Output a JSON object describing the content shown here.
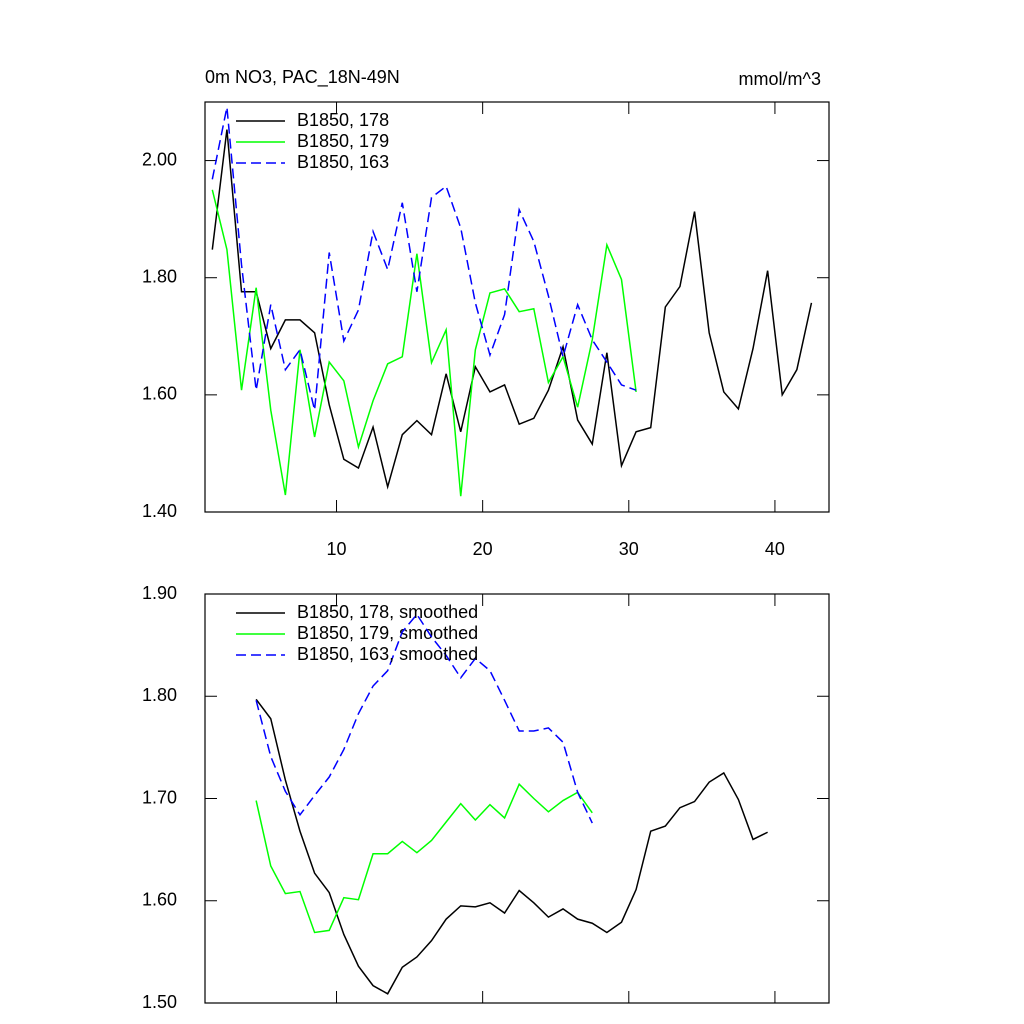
{
  "chart_data": [
    {
      "type": "line",
      "title": "0m NO3, PAC_18N-49N",
      "units": "mmol/m^3",
      "x": [
        1.5,
        2.5,
        3.5,
        4.5,
        5.5,
        6.5,
        7.5,
        8.5,
        9.5,
        10.5,
        11.5,
        12.5,
        13.5,
        14.5,
        15.5,
        16.5,
        17.5,
        18.5,
        19.5,
        20.5,
        21.5,
        22.5,
        23.5,
        24.5,
        25.5,
        26.5,
        27.5,
        28.5,
        29.5,
        30.5,
        31.5,
        32.5,
        33.5,
        34.5,
        35.5,
        36.5,
        37.5,
        38.5,
        39.5,
        40.5,
        41.5,
        42.5
      ],
      "series": [
        {
          "name": "B1850, 178",
          "color": "#000000",
          "dashed": false,
          "values": [
            1.848,
            2.053,
            1.776,
            1.776,
            1.679,
            1.728,
            1.728,
            1.706,
            1.583,
            1.49,
            1.475,
            1.545,
            1.443,
            1.532,
            1.556,
            1.532,
            1.636,
            1.537,
            1.648,
            1.605,
            1.617,
            1.55,
            1.56,
            1.608,
            1.682,
            1.557,
            1.516,
            1.672,
            1.479,
            1.537,
            1.544,
            1.75,
            1.785,
            1.913,
            1.706,
            1.605,
            1.576,
            1.679,
            1.812,
            1.6,
            1.643,
            1.757
          ]
        },
        {
          "name": "B1850, 179",
          "color": "#00ff00",
          "dashed": false,
          "values": [
            1.95,
            1.848,
            1.608,
            1.783,
            1.574,
            1.429,
            1.677,
            1.528,
            1.656,
            1.624,
            1.511,
            1.59,
            1.653,
            1.665,
            1.841,
            1.655,
            1.711,
            1.427,
            1.677,
            1.774,
            1.781,
            1.742,
            1.747,
            1.621,
            1.665,
            1.579,
            1.694,
            1.856,
            1.797,
            1.605,
            null,
            null,
            null,
            null,
            null,
            null,
            null,
            null,
            null,
            null,
            null,
            null
          ]
        },
        {
          "name": "B1850, 163",
          "color": "#0000ff",
          "dashed": true,
          "values": [
            1.968,
            2.091,
            1.822,
            1.608,
            1.754,
            1.643,
            1.677,
            1.574,
            1.843,
            1.692,
            1.745,
            1.879,
            1.814,
            1.928,
            1.776,
            1.937,
            1.956,
            1.885,
            1.757,
            1.668,
            1.737,
            1.916,
            1.862,
            1.769,
            1.665,
            1.754,
            1.694,
            1.656,
            1.617,
            1.608,
            null,
            null,
            null,
            null,
            null,
            null,
            null,
            null,
            null,
            null,
            null,
            null
          ]
        }
      ],
      "xlim": [
        1,
        43.7
      ],
      "xticks": [
        10,
        20,
        30,
        40
      ],
      "ylim": [
        1.4,
        2.1
      ],
      "yticks": [
        {
          "value": 1.4,
          "label": "1.40"
        },
        {
          "value": 1.6,
          "label": "1.60"
        },
        {
          "value": 1.8,
          "label": "1.80"
        },
        {
          "value": 2.0,
          "label": "2.00"
        }
      ],
      "legend": "top-left"
    },
    {
      "type": "line",
      "x": [
        4.5,
        5.5,
        6.5,
        7.5,
        8.5,
        9.5,
        10.5,
        11.5,
        12.5,
        13.5,
        14.5,
        15.5,
        16.5,
        17.5,
        18.5,
        19.5,
        20.5,
        21.5,
        22.5,
        23.5,
        24.5,
        25.5,
        26.5,
        27.5,
        28.5,
        29.5,
        30.5,
        31.5,
        32.5,
        33.5,
        34.5,
        35.5,
        36.5,
        37.5,
        38.5,
        39.5
      ],
      "series": [
        {
          "name": "B1850, 178, smoothed",
          "color": "#000000",
          "dashed": false,
          "values": [
            1.797,
            1.778,
            1.718,
            1.668,
            1.627,
            1.608,
            1.567,
            1.536,
            1.517,
            1.509,
            1.535,
            1.545,
            1.561,
            1.582,
            1.595,
            1.594,
            1.598,
            1.588,
            1.61,
            1.598,
            1.584,
            1.592,
            1.582,
            1.578,
            1.569,
            1.579,
            1.611,
            1.668,
            1.673,
            1.691,
            1.697,
            1.716,
            1.725,
            1.699,
            1.66,
            1.667
          ]
        },
        {
          "name": "B1850, 179, smoothed",
          "color": "#00ff00",
          "dashed": false,
          "values": [
            1.698,
            1.634,
            1.607,
            1.609,
            1.569,
            1.571,
            1.603,
            1.601,
            1.646,
            1.646,
            1.658,
            1.647,
            1.659,
            1.677,
            1.695,
            1.679,
            1.694,
            1.681,
            1.714,
            1.7,
            1.687,
            1.698,
            1.706,
            1.686,
            null,
            null,
            null,
            null,
            null,
            null,
            null,
            null,
            null,
            null,
            null,
            null
          ]
        },
        {
          "name": "B1850, 163, smoothed",
          "color": "#0000ff",
          "dashed": true,
          "values": [
            1.796,
            1.741,
            1.707,
            1.684,
            1.703,
            1.721,
            1.748,
            1.783,
            1.81,
            1.825,
            1.863,
            1.88,
            1.858,
            1.84,
            1.818,
            1.837,
            1.825,
            1.796,
            1.766,
            1.766,
            1.769,
            1.755,
            1.706,
            1.676,
            null,
            null,
            null,
            null,
            null,
            null,
            null,
            null,
            null,
            null,
            null,
            null
          ]
        }
      ],
      "xlim": [
        1,
        43.7
      ],
      "xticks": [
        10,
        20,
        30,
        40
      ],
      "ylim": [
        1.5,
        1.9
      ],
      "yticks": [
        {
          "value": 1.5,
          "label": "1.50"
        },
        {
          "value": 1.6,
          "label": "1.60"
        },
        {
          "value": 1.7,
          "label": "1.70"
        },
        {
          "value": 1.8,
          "label": "1.80"
        },
        {
          "value": 1.9,
          "label": "1.90"
        }
      ],
      "legend": "top-left"
    }
  ]
}
